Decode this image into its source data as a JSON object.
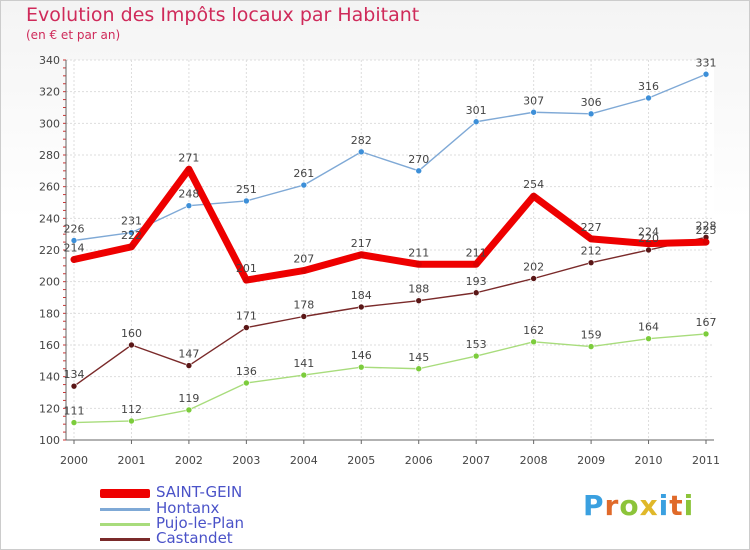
{
  "header": {
    "title": "Evolution des Impôts locaux par Habitant",
    "subtitle": "(en € et par an)"
  },
  "logo": {
    "letters": [
      "P",
      "r",
      "o",
      "x",
      "i",
      "t",
      "i"
    ],
    "colors": [
      "#3aa0e0",
      "#e06a2a",
      "#8cc43a",
      "#e0b82a",
      "#3aa0e0",
      "#e06a2a",
      "#8cc43a"
    ]
  },
  "chart_data": {
    "type": "line",
    "title": "Evolution des Impôts locaux par Habitant",
    "subtitle": "(en € et par an)",
    "xlabel": "",
    "ylabel": "",
    "categories": [
      "2000",
      "2001",
      "2002",
      "2003",
      "2004",
      "2005",
      "2006",
      "2007",
      "2008",
      "2009",
      "2010",
      "2011"
    ],
    "ylim": [
      100,
      340
    ],
    "yticks": [
      100,
      120,
      140,
      160,
      180,
      200,
      220,
      240,
      260,
      280,
      300,
      320,
      340
    ],
    "grid": true,
    "legend": "bottom-left",
    "series": [
      {
        "name": "SAINT-GEIN",
        "color": "#ee0000",
        "marker": "#dd0000",
        "width": 7,
        "legend_width": 9,
        "values": [
          214,
          222,
          271,
          201,
          207,
          217,
          211,
          211,
          254,
          227,
          224,
          225
        ]
      },
      {
        "name": "Hontanx",
        "color": "#7fa9d6",
        "marker": "#3d8fd8",
        "width": 1.4,
        "legend_width": 3,
        "values": [
          226,
          231,
          248,
          251,
          261,
          282,
          270,
          301,
          307,
          306,
          316,
          331
        ]
      },
      {
        "name": "Pujo-le-Plan",
        "color": "#a8dc7c",
        "marker": "#7ccc3c",
        "width": 1.4,
        "legend_width": 3,
        "values": [
          111,
          112,
          119,
          136,
          141,
          146,
          145,
          153,
          162,
          159,
          164,
          167
        ]
      },
      {
        "name": "Castandet",
        "color": "#7a2a2a",
        "marker": "#5a1616",
        "width": 1.4,
        "legend_width": 3,
        "values": [
          134,
          160,
          147,
          171,
          178,
          184,
          188,
          193,
          202,
          212,
          220,
          228
        ]
      }
    ]
  }
}
